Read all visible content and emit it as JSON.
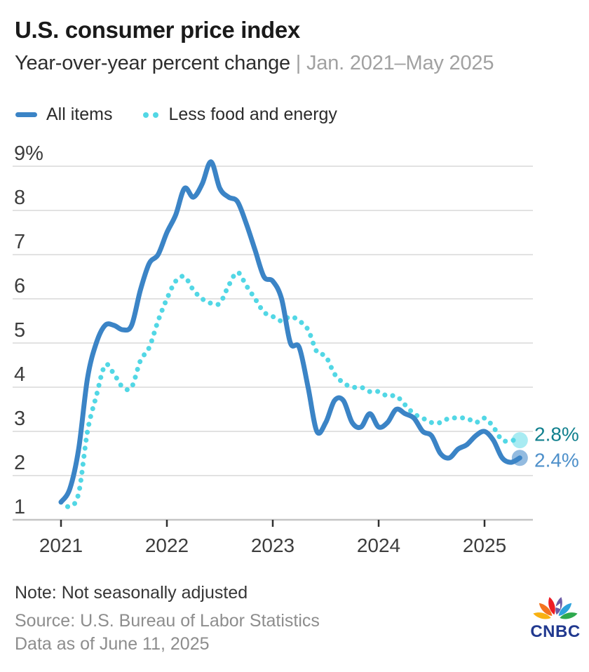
{
  "header": {
    "title": "U.S. consumer price index",
    "subtitle_main": "Year-over-year percent change",
    "subtitle_range": "| Jan. 2021–May 2025"
  },
  "footer": {
    "note": "Note: Not seasonally adjusted",
    "source": "Source: U.S. Bureau of Labor Statistics",
    "as_of": "Data as of June 11, 2025"
  },
  "logo": {
    "text": "CNBC"
  },
  "colors": {
    "all_items_blue": "#3B84C6",
    "core_cyan": "#52D7E5",
    "end_label_teal": "#11808E",
    "end_label_blue": "#4E90CA",
    "gridline": "#d9d9d9",
    "baseline": "#c5c5c5",
    "axis_text": "#3d3d3d",
    "tick": "#2f2f2f"
  },
  "chart_data": {
    "type": "line",
    "title": "U.S. consumer price index",
    "xlabel": "",
    "ylabel": "Year-over-year percent change (%)",
    "ylim": [
      1,
      9
    ],
    "yticks": [
      1,
      2,
      3,
      4,
      5,
      6,
      7,
      8,
      9
    ],
    "ytick_labels": [
      "1",
      "2",
      "3",
      "4",
      "5",
      "6",
      "7",
      "8",
      "9%"
    ],
    "xtick_labels": [
      "2021",
      "2022",
      "2023",
      "2024",
      "2025"
    ],
    "xtick_month_indices": [
      0,
      12,
      24,
      36,
      48
    ],
    "grid": true,
    "legend_position": "top",
    "x": [
      "2021-01",
      "2021-02",
      "2021-03",
      "2021-04",
      "2021-05",
      "2021-06",
      "2021-07",
      "2021-08",
      "2021-09",
      "2021-10",
      "2021-11",
      "2021-12",
      "2022-01",
      "2022-02",
      "2022-03",
      "2022-04",
      "2022-05",
      "2022-06",
      "2022-07",
      "2022-08",
      "2022-09",
      "2022-10",
      "2022-11",
      "2022-12",
      "2023-01",
      "2023-02",
      "2023-03",
      "2023-04",
      "2023-05",
      "2023-06",
      "2023-07",
      "2023-08",
      "2023-09",
      "2023-10",
      "2023-11",
      "2023-12",
      "2024-01",
      "2024-02",
      "2024-03",
      "2024-04",
      "2024-05",
      "2024-06",
      "2024-07",
      "2024-08",
      "2024-09",
      "2024-10",
      "2024-11",
      "2024-12",
      "2025-01",
      "2025-02",
      "2025-03",
      "2025-04",
      "2025-05"
    ],
    "series": [
      {
        "name": "All items",
        "style": "solid",
        "color": "#3B84C6",
        "end_label": "2.4%",
        "end_label_color": "#4E90CA",
        "values": [
          1.4,
          1.7,
          2.6,
          4.2,
          5.0,
          5.4,
          5.4,
          5.3,
          5.4,
          6.2,
          6.8,
          7.0,
          7.5,
          7.9,
          8.5,
          8.3,
          8.6,
          9.1,
          8.5,
          8.3,
          8.2,
          7.7,
          7.1,
          6.5,
          6.4,
          6.0,
          5.0,
          4.9,
          4.0,
          3.0,
          3.2,
          3.7,
          3.7,
          3.2,
          3.1,
          3.4,
          3.1,
          3.2,
          3.5,
          3.4,
          3.3,
          3.0,
          2.9,
          2.5,
          2.4,
          2.6,
          2.7,
          2.9,
          3.0,
          2.8,
          2.4,
          2.3,
          2.4
        ]
      },
      {
        "name": "Less food and energy",
        "style": "dotted",
        "color": "#52D7E5",
        "end_label": "2.8%",
        "end_label_color": "#11808E",
        "values": [
          1.4,
          1.3,
          1.6,
          3.0,
          3.8,
          4.5,
          4.3,
          4.0,
          4.0,
          4.6,
          4.9,
          5.5,
          6.0,
          6.4,
          6.5,
          6.2,
          6.0,
          5.9,
          5.9,
          6.3,
          6.6,
          6.3,
          6.0,
          5.7,
          5.6,
          5.5,
          5.6,
          5.5,
          5.3,
          4.8,
          4.7,
          4.3,
          4.1,
          4.0,
          4.0,
          3.9,
          3.9,
          3.8,
          3.8,
          3.6,
          3.4,
          3.3,
          3.2,
          3.2,
          3.3,
          3.3,
          3.3,
          3.2,
          3.3,
          3.1,
          2.8,
          2.8,
          2.8
        ]
      }
    ]
  }
}
